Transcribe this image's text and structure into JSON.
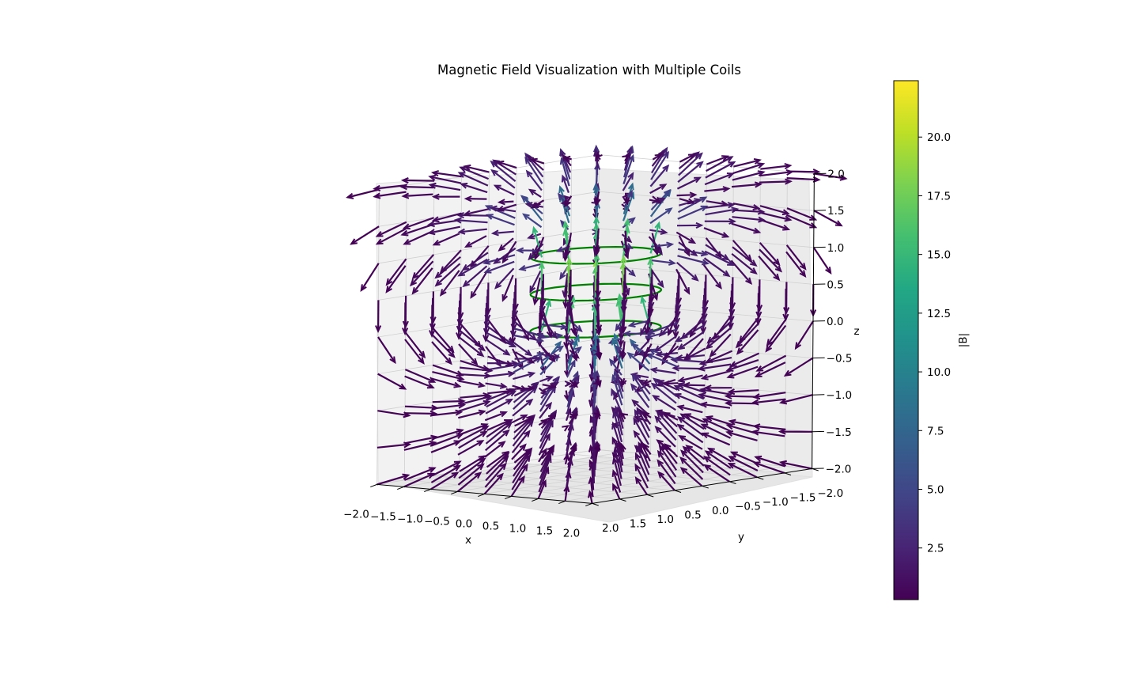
{
  "chart_data": {
    "type": "quiver3d",
    "title": "Magnetic Field Visualization with Multiple Coils",
    "xlabel": "x",
    "ylabel": "y",
    "zlabel": "z",
    "xlim": [
      -2.0,
      2.0
    ],
    "ylim": [
      -2.0,
      2.0
    ],
    "zlim": [
      -2.0,
      2.0
    ],
    "x_ticks": [
      "−2.0",
      "−1.5",
      "−1.0",
      "−0.5",
      "0.0",
      "0.5",
      "1.0",
      "1.5",
      "2.0"
    ],
    "y_ticks": [
      "−2.0",
      "−1.5",
      "−1.0",
      "−0.5",
      "0.0",
      "0.5",
      "1.0",
      "1.5",
      "2.0"
    ],
    "z_ticks": [
      "2.0",
      "1.5",
      "1.0",
      "0.5",
      "0.0",
      "−0.5",
      "−1.0",
      "−1.5",
      "−2.0"
    ],
    "grid": true,
    "colormap": "viridis",
    "colorbar": {
      "label": "|B|",
      "range": [
        0.3,
        22.4
      ],
      "ticks": [
        2.5,
        5.0,
        7.5,
        10.0,
        12.5,
        15.0,
        17.5,
        20.0
      ],
      "tick_labels": [
        "2.5",
        "5.0",
        "7.5",
        "10.0",
        "12.5",
        "15.0",
        "17.5",
        "20.0"
      ]
    },
    "coils": [
      {
        "z": 1.0,
        "color": "#008000"
      },
      {
        "z": 0.5,
        "color": "#008000"
      },
      {
        "z": 0.0,
        "color": "#008000"
      }
    ],
    "grid_points_per_axis": 9,
    "colors": {
      "coil": "#008000",
      "pane": "#f2f2f2",
      "gridline": "#d0d0d0"
    }
  }
}
